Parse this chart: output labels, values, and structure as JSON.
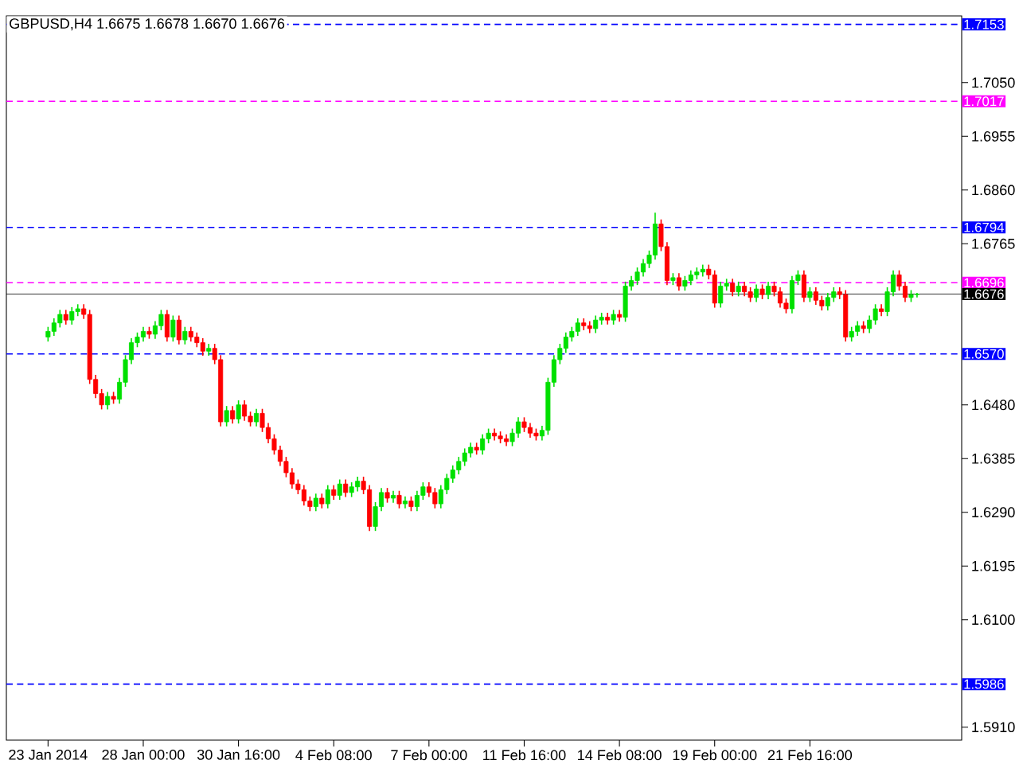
{
  "chart_data": {
    "type": "candlestick",
    "title": "GBPUSD,H4  1.6675 1.6678 1.6670 1.6676",
    "categories": [
      "23 Jan 2014",
      null,
      null,
      null,
      null,
      null,
      null,
      null,
      null,
      null,
      null,
      null,
      null,
      null,
      null,
      null,
      "28 Jan 00:00",
      null,
      null,
      null,
      null,
      null,
      null,
      null,
      null,
      null,
      null,
      null,
      null,
      null,
      null,
      null,
      "30 Jan 16:00",
      null,
      null,
      null,
      null,
      null,
      null,
      null,
      null,
      null,
      null,
      null,
      null,
      null,
      null,
      null,
      "4 Feb 08:00",
      null,
      null,
      null,
      null,
      null,
      null,
      null,
      null,
      null,
      null,
      null,
      null,
      null,
      null,
      null,
      "7 Feb 00:00",
      null,
      null,
      null,
      null,
      null,
      null,
      null,
      null,
      null,
      null,
      null,
      null,
      null,
      null,
      null,
      "11 Feb 16:00",
      null,
      null,
      null,
      null,
      null,
      null,
      null,
      null,
      null,
      null,
      null,
      null,
      null,
      null,
      null,
      "14 Feb 08:00",
      null,
      null,
      null,
      null,
      null,
      null,
      null,
      null,
      null,
      null,
      null,
      null,
      null,
      null,
      null,
      "19 Feb 00:00",
      null,
      null,
      null,
      null,
      null,
      null,
      null,
      null,
      null,
      null,
      null,
      null,
      null,
      null,
      null,
      "21 Feb 16:00",
      null,
      null,
      null,
      null,
      null,
      null,
      null,
      null,
      null,
      null,
      null,
      null,
      null,
      null,
      null,
      null,
      null,
      null
    ],
    "ohlc": [
      [
        1.66,
        1.6618,
        1.6592,
        1.661
      ],
      [
        1.661,
        1.6633,
        1.6602,
        1.6625
      ],
      [
        1.6625,
        1.6648,
        1.6617,
        1.664
      ],
      [
        1.664,
        1.6648,
        1.6622,
        1.663
      ],
      [
        1.663,
        1.6653,
        1.6622,
        1.6645
      ],
      [
        1.6645,
        1.6658,
        1.6637,
        1.665
      ],
      [
        1.665,
        1.6658,
        1.6632,
        1.664
      ],
      [
        1.664,
        1.6648,
        1.6517,
        1.6525
      ],
      [
        1.6525,
        1.6533,
        1.6492,
        1.65
      ],
      [
        1.65,
        1.6508,
        1.6472,
        1.648
      ],
      [
        1.648,
        1.6503,
        1.6472,
        1.6495
      ],
      [
        1.6495,
        1.6503,
        1.6482,
        1.649
      ],
      [
        1.649,
        1.6528,
        1.6482,
        1.652
      ],
      [
        1.652,
        1.6568,
        1.6512,
        1.656
      ],
      [
        1.656,
        1.6598,
        1.6552,
        1.659
      ],
      [
        1.659,
        1.6608,
        1.6582,
        1.66
      ],
      [
        1.66,
        1.6618,
        1.6592,
        1.661
      ],
      [
        1.661,
        1.6618,
        1.6597,
        1.6605
      ],
      [
        1.6605,
        1.6628,
        1.6597,
        1.662
      ],
      [
        1.662,
        1.6648,
        1.6612,
        1.664
      ],
      [
        1.664,
        1.6648,
        1.6592,
        1.66
      ],
      [
        1.66,
        1.6638,
        1.6592,
        1.663
      ],
      [
        1.663,
        1.6638,
        1.6587,
        1.6595
      ],
      [
        1.6595,
        1.6618,
        1.6587,
        1.661
      ],
      [
        1.661,
        1.6618,
        1.6592,
        1.66
      ],
      [
        1.66,
        1.6608,
        1.6582,
        1.659
      ],
      [
        1.659,
        1.6598,
        1.6567,
        1.6575
      ],
      [
        1.6575,
        1.6588,
        1.6567,
        1.658
      ],
      [
        1.658,
        1.6588,
        1.6552,
        1.656
      ],
      [
        1.656,
        1.6568,
        1.6442,
        1.645
      ],
      [
        1.645,
        1.6478,
        1.6442,
        1.647
      ],
      [
        1.647,
        1.6478,
        1.6447,
        1.6455
      ],
      [
        1.6455,
        1.6488,
        1.6447,
        1.648
      ],
      [
        1.648,
        1.6488,
        1.6452,
        1.646
      ],
      [
        1.646,
        1.6468,
        1.6442,
        1.645
      ],
      [
        1.645,
        1.6473,
        1.6442,
        1.6465
      ],
      [
        1.6465,
        1.6473,
        1.6432,
        1.644
      ],
      [
        1.644,
        1.6448,
        1.6412,
        1.642
      ],
      [
        1.642,
        1.6428,
        1.6392,
        1.64
      ],
      [
        1.64,
        1.6408,
        1.6372,
        1.638
      ],
      [
        1.638,
        1.6388,
        1.6352,
        1.636
      ],
      [
        1.636,
        1.6368,
        1.6332,
        1.634
      ],
      [
        1.634,
        1.6348,
        1.6322,
        1.633
      ],
      [
        1.633,
        1.6338,
        1.6302,
        1.631
      ],
      [
        1.631,
        1.6318,
        1.6292,
        1.63
      ],
      [
        1.63,
        1.6323,
        1.6292,
        1.6315
      ],
      [
        1.6315,
        1.6323,
        1.6297,
        1.6305
      ],
      [
        1.6305,
        1.6338,
        1.6297,
        1.633
      ],
      [
        1.633,
        1.6338,
        1.6312,
        1.632
      ],
      [
        1.632,
        1.6348,
        1.6312,
        1.634
      ],
      [
        1.634,
        1.6348,
        1.6317,
        1.6325
      ],
      [
        1.6325,
        1.6343,
        1.6317,
        1.6335
      ],
      [
        1.6335,
        1.6353,
        1.6327,
        1.6345
      ],
      [
        1.6345,
        1.6353,
        1.6322,
        1.633
      ],
      [
        1.633,
        1.6338,
        1.6257,
        1.6265
      ],
      [
        1.6265,
        1.6308,
        1.6257,
        1.63
      ],
      [
        1.63,
        1.6333,
        1.6292,
        1.6325
      ],
      [
        1.6325,
        1.6333,
        1.6307,
        1.6315
      ],
      [
        1.6315,
        1.6328,
        1.6307,
        1.632
      ],
      [
        1.632,
        1.6328,
        1.6297,
        1.6305
      ],
      [
        1.6305,
        1.6318,
        1.6297,
        1.631
      ],
      [
        1.631,
        1.6318,
        1.6292,
        1.63
      ],
      [
        1.63,
        1.6328,
        1.6292,
        1.632
      ],
      [
        1.632,
        1.6343,
        1.6312,
        1.6335
      ],
      [
        1.6335,
        1.6343,
        1.6317,
        1.6325
      ],
      [
        1.6325,
        1.6333,
        1.6297,
        1.6305
      ],
      [
        1.6305,
        1.6338,
        1.6297,
        1.633
      ],
      [
        1.633,
        1.6358,
        1.6322,
        1.635
      ],
      [
        1.635,
        1.6373,
        1.6342,
        1.6365
      ],
      [
        1.6365,
        1.6388,
        1.6357,
        1.638
      ],
      [
        1.638,
        1.6403,
        1.6372,
        1.6395
      ],
      [
        1.6395,
        1.6413,
        1.6387,
        1.6405
      ],
      [
        1.6405,
        1.6413,
        1.6392,
        1.64
      ],
      [
        1.64,
        1.6428,
        1.6392,
        1.642
      ],
      [
        1.642,
        1.6438,
        1.6412,
        1.643
      ],
      [
        1.643,
        1.6438,
        1.6417,
        1.6425
      ],
      [
        1.6425,
        1.6433,
        1.6412,
        1.642
      ],
      [
        1.642,
        1.6428,
        1.6407,
        1.6415
      ],
      [
        1.6415,
        1.6438,
        1.6407,
        1.643
      ],
      [
        1.643,
        1.6458,
        1.6422,
        1.645
      ],
      [
        1.645,
        1.6458,
        1.6432,
        1.644
      ],
      [
        1.644,
        1.6448,
        1.6422,
        1.643
      ],
      [
        1.643,
        1.6438,
        1.6417,
        1.6425
      ],
      [
        1.6425,
        1.6443,
        1.6417,
        1.6435
      ],
      [
        1.6435,
        1.6528,
        1.6427,
        1.652
      ],
      [
        1.652,
        1.6568,
        1.6512,
        1.656
      ],
      [
        1.656,
        1.6588,
        1.6552,
        1.658
      ],
      [
        1.658,
        1.6608,
        1.6572,
        1.66
      ],
      [
        1.66,
        1.6618,
        1.6592,
        1.661
      ],
      [
        1.661,
        1.6633,
        1.6602,
        1.6625
      ],
      [
        1.6625,
        1.6633,
        1.6612,
        1.662
      ],
      [
        1.662,
        1.6628,
        1.6607,
        1.6615
      ],
      [
        1.6615,
        1.6638,
        1.6607,
        1.663
      ],
      [
        1.663,
        1.6643,
        1.6622,
        1.6635
      ],
      [
        1.6635,
        1.6643,
        1.6622,
        1.663
      ],
      [
        1.663,
        1.6648,
        1.6622,
        1.664
      ],
      [
        1.664,
        1.6648,
        1.6627,
        1.6635
      ],
      [
        1.6635,
        1.6698,
        1.6627,
        1.669
      ],
      [
        1.669,
        1.6708,
        1.6682,
        1.67
      ],
      [
        1.67,
        1.6723,
        1.6692,
        1.6715
      ],
      [
        1.6715,
        1.6738,
        1.6707,
        1.673
      ],
      [
        1.673,
        1.6753,
        1.6722,
        1.6745
      ],
      [
        1.6745,
        1.682,
        1.6737,
        1.68
      ],
      [
        1.68,
        1.6808,
        1.6752,
        1.676
      ],
      [
        1.676,
        1.6768,
        1.6692,
        1.67
      ],
      [
        1.67,
        1.6713,
        1.6692,
        1.6705
      ],
      [
        1.6705,
        1.6713,
        1.6682,
        1.669
      ],
      [
        1.669,
        1.6708,
        1.6682,
        1.67
      ],
      [
        1.67,
        1.6718,
        1.6692,
        1.671
      ],
      [
        1.671,
        1.6723,
        1.6702,
        1.6715
      ],
      [
        1.6715,
        1.6728,
        1.6707,
        1.672
      ],
      [
        1.672,
        1.6728,
        1.6702,
        1.671
      ],
      [
        1.671,
        1.6718,
        1.6652,
        1.666
      ],
      [
        1.666,
        1.6698,
        1.6652,
        1.669
      ],
      [
        1.669,
        1.6703,
        1.6682,
        1.6695
      ],
      [
        1.6695,
        1.6703,
        1.6672,
        1.668
      ],
      [
        1.668,
        1.6698,
        1.6672,
        1.669
      ],
      [
        1.669,
        1.6698,
        1.6672,
        1.668
      ],
      [
        1.668,
        1.6688,
        1.6662,
        1.667
      ],
      [
        1.667,
        1.6693,
        1.6662,
        1.6685
      ],
      [
        1.6685,
        1.6693,
        1.6667,
        1.6675
      ],
      [
        1.6675,
        1.6698,
        1.6667,
        1.669
      ],
      [
        1.669,
        1.6698,
        1.6672,
        1.668
      ],
      [
        1.668,
        1.6688,
        1.6652,
        1.666
      ],
      [
        1.666,
        1.6668,
        1.6642,
        1.665
      ],
      [
        1.665,
        1.6708,
        1.6642,
        1.67
      ],
      [
        1.67,
        1.6718,
        1.6692,
        1.671
      ],
      [
        1.671,
        1.6718,
        1.6662,
        1.667
      ],
      [
        1.667,
        1.6688,
        1.6662,
        1.668
      ],
      [
        1.668,
        1.6688,
        1.6657,
        1.6665
      ],
      [
        1.6665,
        1.6673,
        1.6647,
        1.6655
      ],
      [
        1.6655,
        1.6678,
        1.6647,
        1.667
      ],
      [
        1.667,
        1.6688,
        1.6662,
        1.668
      ],
      [
        1.668,
        1.6688,
        1.6667,
        1.6675
      ],
      [
        1.6675,
        1.6683,
        1.6592,
        1.66
      ],
      [
        1.66,
        1.6618,
        1.6592,
        1.661
      ],
      [
        1.661,
        1.6628,
        1.6602,
        1.662
      ],
      [
        1.662,
        1.6628,
        1.6607,
        1.6615
      ],
      [
        1.6615,
        1.6638,
        1.6607,
        1.663
      ],
      [
        1.663,
        1.6658,
        1.6622,
        1.665
      ],
      [
        1.665,
        1.6658,
        1.6637,
        1.6645
      ],
      [
        1.6645,
        1.6688,
        1.6637,
        1.668
      ],
      [
        1.668,
        1.6718,
        1.6672,
        1.671
      ],
      [
        1.671,
        1.6718,
        1.6682,
        1.669
      ],
      [
        1.669,
        1.6698,
        1.6662,
        1.667
      ],
      [
        1.667,
        1.6683,
        1.6662,
        1.6675
      ],
      [
        1.6675,
        1.6678,
        1.667,
        1.6676
      ]
    ],
    "ylim": [
      1.5887,
      1.7168
    ],
    "yticks": [
      {
        "value": 1.705,
        "label": "1.7050"
      },
      {
        "value": 1.6955,
        "label": "1.6955"
      },
      {
        "value": 1.686,
        "label": "1.6860"
      },
      {
        "value": 1.6765,
        "label": "1.6765"
      },
      {
        "value": 1.648,
        "label": "1.6480"
      },
      {
        "value": 1.6385,
        "label": "1.6385"
      },
      {
        "value": 1.629,
        "label": "1.6290"
      },
      {
        "value": 1.6195,
        "label": "1.6195"
      },
      {
        "value": 1.61,
        "label": "1.6100"
      },
      {
        "value": 1.591,
        "label": "1.5910"
      }
    ],
    "ref_lines": [
      {
        "axis": "y",
        "value": 1.7153,
        "label": "1.7153",
        "color": "#0000ff",
        "line_style": "dashed"
      },
      {
        "axis": "y",
        "value": 1.7017,
        "label": "1.7017",
        "color": "#ff00ff",
        "line_style": "dashed"
      },
      {
        "axis": "y",
        "value": 1.6794,
        "label": "1.6794",
        "color": "#0000ff",
        "line_style": "dashed"
      },
      {
        "axis": "y",
        "value": 1.6696,
        "label": "1.6696",
        "color": "#ff00ff",
        "line_style": "dashed"
      },
      {
        "axis": "y",
        "value": 1.6676,
        "label": "1.6676",
        "color": "#000000",
        "line_style": "solid"
      },
      {
        "axis": "y",
        "value": 1.657,
        "label": "1.6570",
        "color": "#0000ff",
        "line_style": "dashed"
      },
      {
        "axis": "y",
        "value": 1.5986,
        "label": "1.5986",
        "color": "#0000ff",
        "line_style": "dashed"
      }
    ]
  }
}
